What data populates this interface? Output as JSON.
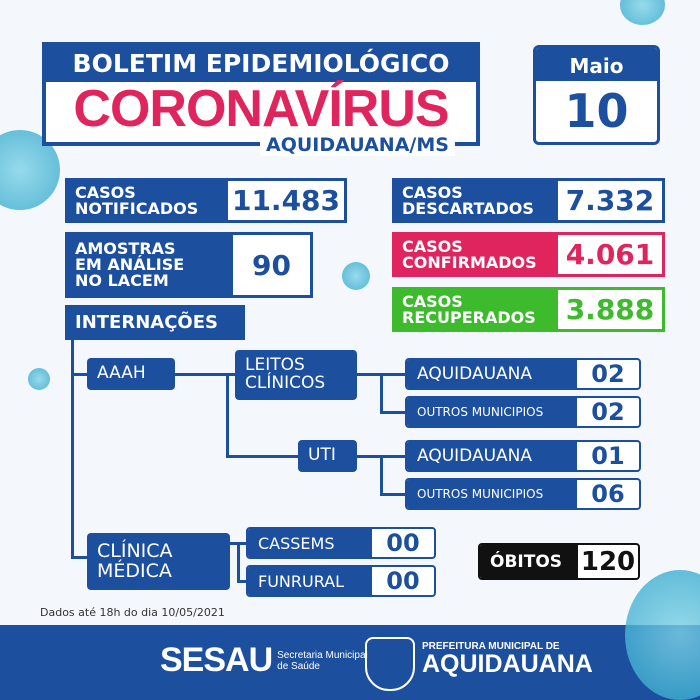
{
  "header": {
    "top": "BOLETIM EPIDEMIOLÓGICO",
    "title": "CORONAVÍRUS",
    "subtitle": "AQUIDAUANA/MS"
  },
  "calendar": {
    "month": "Maio",
    "day": "10"
  },
  "stats": {
    "notificados": {
      "label1": "CASOS",
      "label2": "NOTIFICADOS",
      "value": "11.483"
    },
    "amostras": {
      "label1": "AMOSTRAS",
      "label2": "EM ANÁLISE",
      "label3": "NO LACEM",
      "value": "90"
    },
    "descartados": {
      "label1": "CASOS",
      "label2": "DESCARTADOS",
      "value": "7.332"
    },
    "confirmados": {
      "label1": "CASOS",
      "label2": "CONFIRMADOS",
      "value": "4.061"
    },
    "recuperados": {
      "label1": "CASOS",
      "label2": "RECUPERADOS",
      "value": "3.888"
    }
  },
  "internacoes": {
    "title": "INTERNAÇÕES",
    "aaah": "AAAH",
    "leitos": {
      "label1": "LEITOS",
      "label2": "CLÍNICOS"
    },
    "uti": "UTI",
    "rows": [
      {
        "label": "AQUIDAUANA",
        "value": "02"
      },
      {
        "label": "OUTROS MUNICIPIOS",
        "value": "02"
      },
      {
        "label": "AQUIDAUANA",
        "value": "01"
      },
      {
        "label": "OUTROS MUNICIPIOS",
        "value": "06"
      }
    ],
    "clinica": {
      "label1": "CLÍNICA",
      "label2": "MÉDICA"
    },
    "clinica_rows": [
      {
        "label": "CASSEMS",
        "value": "00"
      },
      {
        "label": "FUNRURAL",
        "value": "00"
      }
    ]
  },
  "obitos": {
    "label": "ÓBITOS",
    "value": "120"
  },
  "footnote": "Dados até 18h do dia 10/05/2021",
  "footer": {
    "sesau": "SESAU",
    "sesau_sub1": "Secretaria Municipal",
    "sesau_sub2": "de Saúde",
    "pref1": "PREFEITURA MUNICIPAL DE",
    "pref2": "AQUIDAUANA"
  },
  "colors": {
    "blue": "#1d4f9f",
    "red": "#e0245e",
    "green": "#3dbb2c",
    "black": "#111111"
  }
}
